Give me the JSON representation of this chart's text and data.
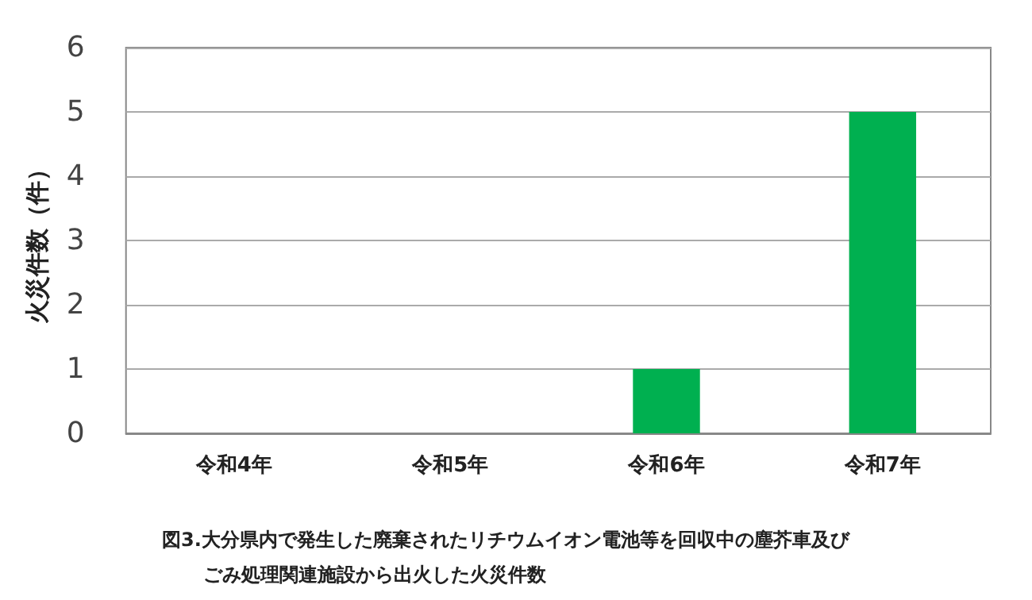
{
  "chart_data": {
    "type": "bar",
    "ylabel": "火災件数（件）",
    "categories": [
      "令和4年",
      "令和5年",
      "令和6年",
      "令和7年"
    ],
    "values": [
      0,
      0,
      1,
      5
    ],
    "color": "#00b050",
    "ylim": [
      0,
      6
    ],
    "yticks": [
      0,
      1,
      2,
      3,
      4,
      5,
      6
    ],
    "grid": "y",
    "annotations": [
      "図3.大分県内で発生した廃棄されたリチウムイオン電池等を回収中の塵芥車及び",
      "ごみ処理関連施設から出火した火災件数"
    ]
  }
}
